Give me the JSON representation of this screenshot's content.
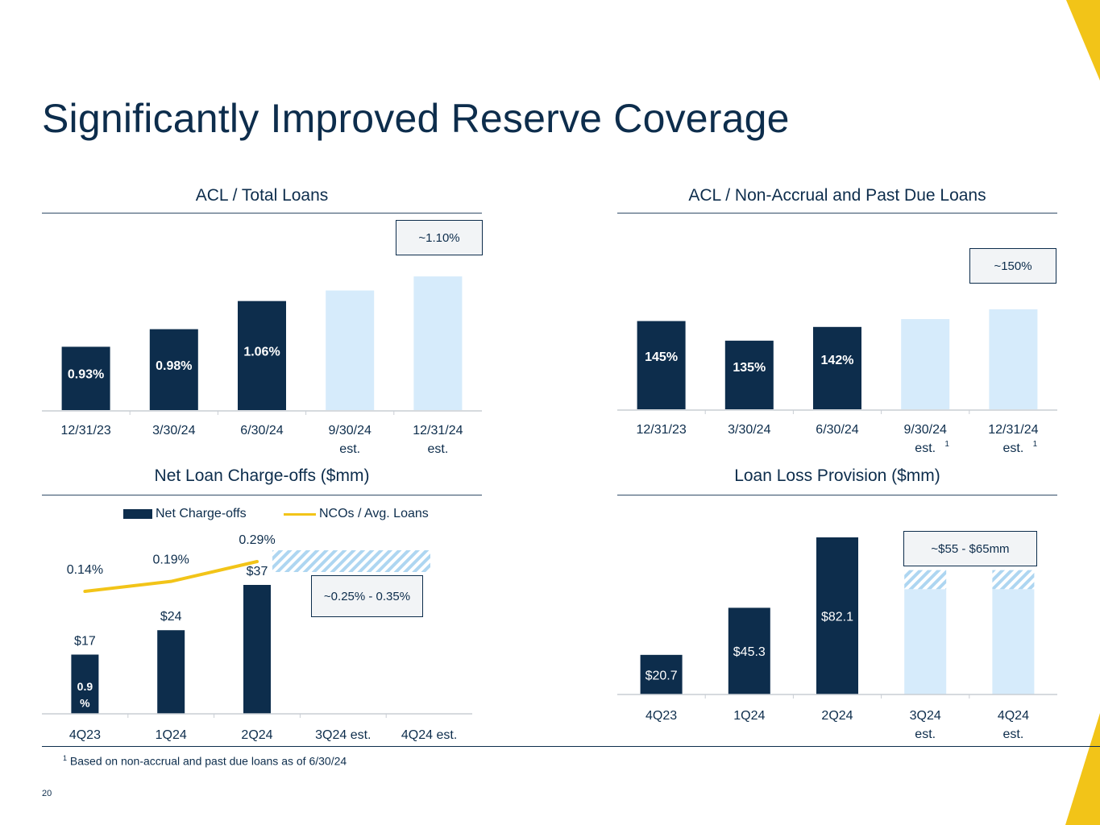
{
  "slide": {
    "title": "Significantly Improved Reserve Coverage",
    "page_number": "20"
  },
  "footnote": {
    "marker": "1",
    "text": "Based on non-accrual and past due loans as of 6/30/24"
  },
  "colors": {
    "navy": "#0d2d4c",
    "light_blue": "#d6ebfb",
    "gold": "#f2c418",
    "hatch": "#aed6f1"
  },
  "chart_data": [
    {
      "id": "acl-total-loans",
      "type": "bar",
      "title": "ACL / Total Loans",
      "categories": [
        "12/31/23",
        "3/30/24",
        "6/30/24",
        "9/30/24\nest.",
        "12/31/24\nest."
      ],
      "values": [
        0.93,
        0.98,
        1.06,
        1.09,
        1.13
      ],
      "labels": [
        "0.93%",
        "0.98%",
        "1.06%",
        "",
        ""
      ],
      "estimated": [
        false,
        false,
        false,
        true,
        true
      ],
      "ylim": [
        0.75,
        1.16
      ],
      "callout": "~1.10%"
    },
    {
      "id": "acl-nonaccrual",
      "type": "bar",
      "title": "ACL / Non-Accrual and Past Due Loans",
      "categories": [
        "12/31/23",
        "3/30/24",
        "6/30/24",
        "9/30/24\nest.",
        "12/31/24\nest."
      ],
      "category_notes": [
        "",
        "",
        "",
        "1",
        "1"
      ],
      "values": [
        145,
        135,
        142,
        146,
        151
      ],
      "labels": [
        "145%",
        "135%",
        "142%",
        "",
        ""
      ],
      "estimated": [
        false,
        false,
        false,
        true,
        true
      ],
      "ylim": [
        100,
        160
      ],
      "callout": "~150%"
    },
    {
      "id": "net-charge-offs",
      "type": "bar",
      "title": "Net Loan Charge-offs ($mm)",
      "categories": [
        "4Q23",
        "1Q24",
        "2Q24",
        "3Q24 est.",
        "4Q24 est."
      ],
      "series": [
        {
          "name": "Net Charge-offs",
          "kind": "bar",
          "values": [
            17,
            24,
            37,
            null,
            null
          ],
          "labels": [
            "$17",
            "$24",
            "$37",
            "",
            ""
          ]
        },
        {
          "name": "NCOs / Avg. Loans",
          "kind": "line",
          "values": [
            0.14,
            0.19,
            0.29,
            null,
            null
          ],
          "labels": [
            "0.14%",
            "0.19%",
            "0.29%",
            "",
            ""
          ]
        }
      ],
      "inner_bar_label": "0.9\n%",
      "estimate_range": [
        0.25,
        0.35
      ],
      "callout": "~0.25% - 0.35%"
    },
    {
      "id": "loan-loss-provision",
      "type": "bar",
      "title": "Loan Loss Provision ($mm)",
      "categories": [
        "4Q23",
        "1Q24",
        "2Q24",
        "3Q24\nest.",
        "4Q24\nest."
      ],
      "values": [
        20.7,
        45.3,
        82.1,
        55,
        55
      ],
      "estimate_high": [
        null,
        null,
        null,
        65,
        65
      ],
      "labels": [
        "$20.7",
        "$45.3",
        "$82.1",
        "",
        ""
      ],
      "estimated": [
        false,
        false,
        false,
        true,
        true
      ],
      "ylim": [
        0,
        82.1
      ],
      "callout": "~$55 - $65mm"
    }
  ]
}
